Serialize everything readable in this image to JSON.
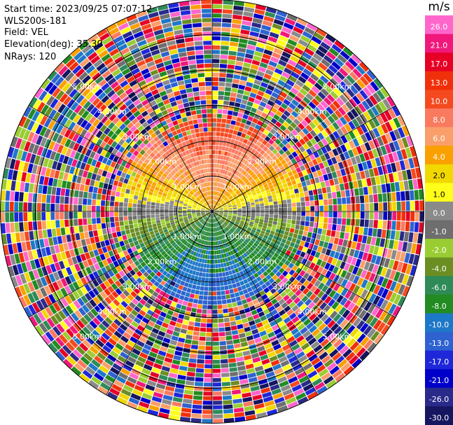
{
  "header": {
    "start_time": "Start time: 2023/09/25 07:07:12",
    "instrument": "WLS200s-181",
    "field": "Field: VEL",
    "elevation": "Elevation(deg): 35.30",
    "nrays": "NRays: 120"
  },
  "chart_data": {
    "type": "heatmap",
    "projection": "polar PPI",
    "field": "VEL",
    "n_rays": 120,
    "max_range_km": 6.0,
    "valid_range_km": 2.6,
    "range_rings_km": [
      1,
      2,
      3,
      4,
      5
    ],
    "ring_labels": {
      "r1": "1.00km",
      "r2": "2.00km",
      "r3": "3.00km",
      "r4": "4.00km",
      "r5": "5.00km"
    },
    "colorbar": {
      "unit": "m/s",
      "ticks": [
        "26.0",
        "21.0",
        "17.0",
        "13.0",
        "10.0",
        "8.0",
        "6.0",
        "4.0",
        "2.0",
        "1.0",
        "0.0",
        "-1.0",
        "-2.0",
        "-4.0",
        "-6.0",
        "-8.0",
        "-10.0",
        "-13.0",
        "-17.0",
        "-21.0",
        "-26.0",
        "-30.0"
      ],
      "colors": [
        "#ff66cc",
        "#f0187a",
        "#e60026",
        "#f0300a",
        "#f54a1f",
        "#fa7a60",
        "#fa9f6a",
        "#faa000",
        "#f0d800",
        "#ffff1a",
        "#8a8a8a",
        "#6e6e6e",
        "#9acd32",
        "#6b8e23",
        "#2e8b57",
        "#228b22",
        "#1e78c8",
        "#2d62d0",
        "#1e28d8",
        "#0000c8",
        "#2a2a8a",
        "#151560"
      ]
    },
    "velocity_pattern": {
      "north_half_sign": "positive",
      "south_half_sign": "negative",
      "near_zero_band": "east-west axis",
      "beyond_valid_range": "random noise"
    }
  }
}
